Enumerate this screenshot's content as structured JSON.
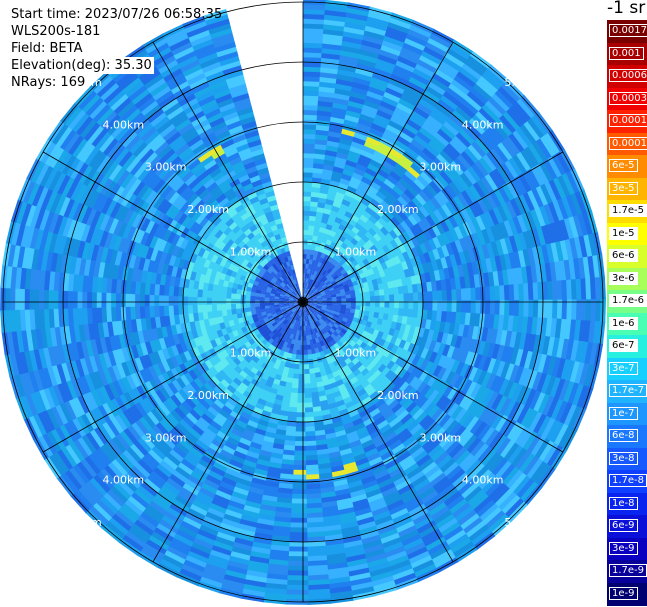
{
  "info": {
    "start_time": "Start time: 2023/07/26 06:58:35",
    "device": "WLS200s-181",
    "field": "Field: BETA",
    "elevation": "Elevation(deg): 35.30",
    "nrays": "NRays: 169"
  },
  "chart_data": {
    "type": "heatmap",
    "projection": "polar",
    "title": "",
    "unit_label": "-1 sr",
    "max_range_km": 5.0,
    "ring_labels": [
      "1.00km",
      "2.00km",
      "3.00km",
      "4.00km",
      "5.00km"
    ],
    "rings_km": [
      1,
      2,
      3,
      4,
      5
    ],
    "spoke_count": 12,
    "missing_sector_deg": [
      -22,
      0
    ],
    "colorbar": {
      "labels": [
        "0.0017",
        "0.001",
        "0.0006",
        "0.0003",
        "0.00017",
        "0.0001",
        "6e-5",
        "3e-5",
        "1.7e-5",
        "1e-5",
        "6e-6",
        "3e-6",
        "1.7e-6",
        "1e-6",
        "6e-7",
        "3e-7",
        "1.7e-7",
        "1e-7",
        "6e-8",
        "3e-8",
        "1.7e-8",
        "1e-8",
        "6e-9",
        "3e-9",
        "1.7e-9",
        "1e-9"
      ],
      "colors": [
        "#7a0000",
        "#a80000",
        "#d00000",
        "#f00000",
        "#ff2200",
        "#ff5a00",
        "#ff8c00",
        "#ffb400",
        "#ffdc00",
        "#ffff00",
        "#d8ff2a",
        "#a8ff5a",
        "#78ff88",
        "#48ffb4",
        "#28f0e0",
        "#18d0ff",
        "#20b4ff",
        "#1e96ff",
        "#1a78ff",
        "#165aff",
        "#1040ff",
        "#0a24f0",
        "#0a10d8",
        "#0a00c0",
        "#08009a",
        "#000070"
      ]
    },
    "features": [
      {
        "name": "near-range low backscatter",
        "range_km": [
          0,
          0.8
        ],
        "value": "1.7e-8"
      },
      {
        "name": "aerosol ring",
        "range_km": [
          1.0,
          2.0
        ],
        "value": "1.7e-7"
      },
      {
        "name": "cloud arc",
        "range_km": [
          2.8,
          3.0
        ],
        "value": "1e-5"
      }
    ]
  }
}
